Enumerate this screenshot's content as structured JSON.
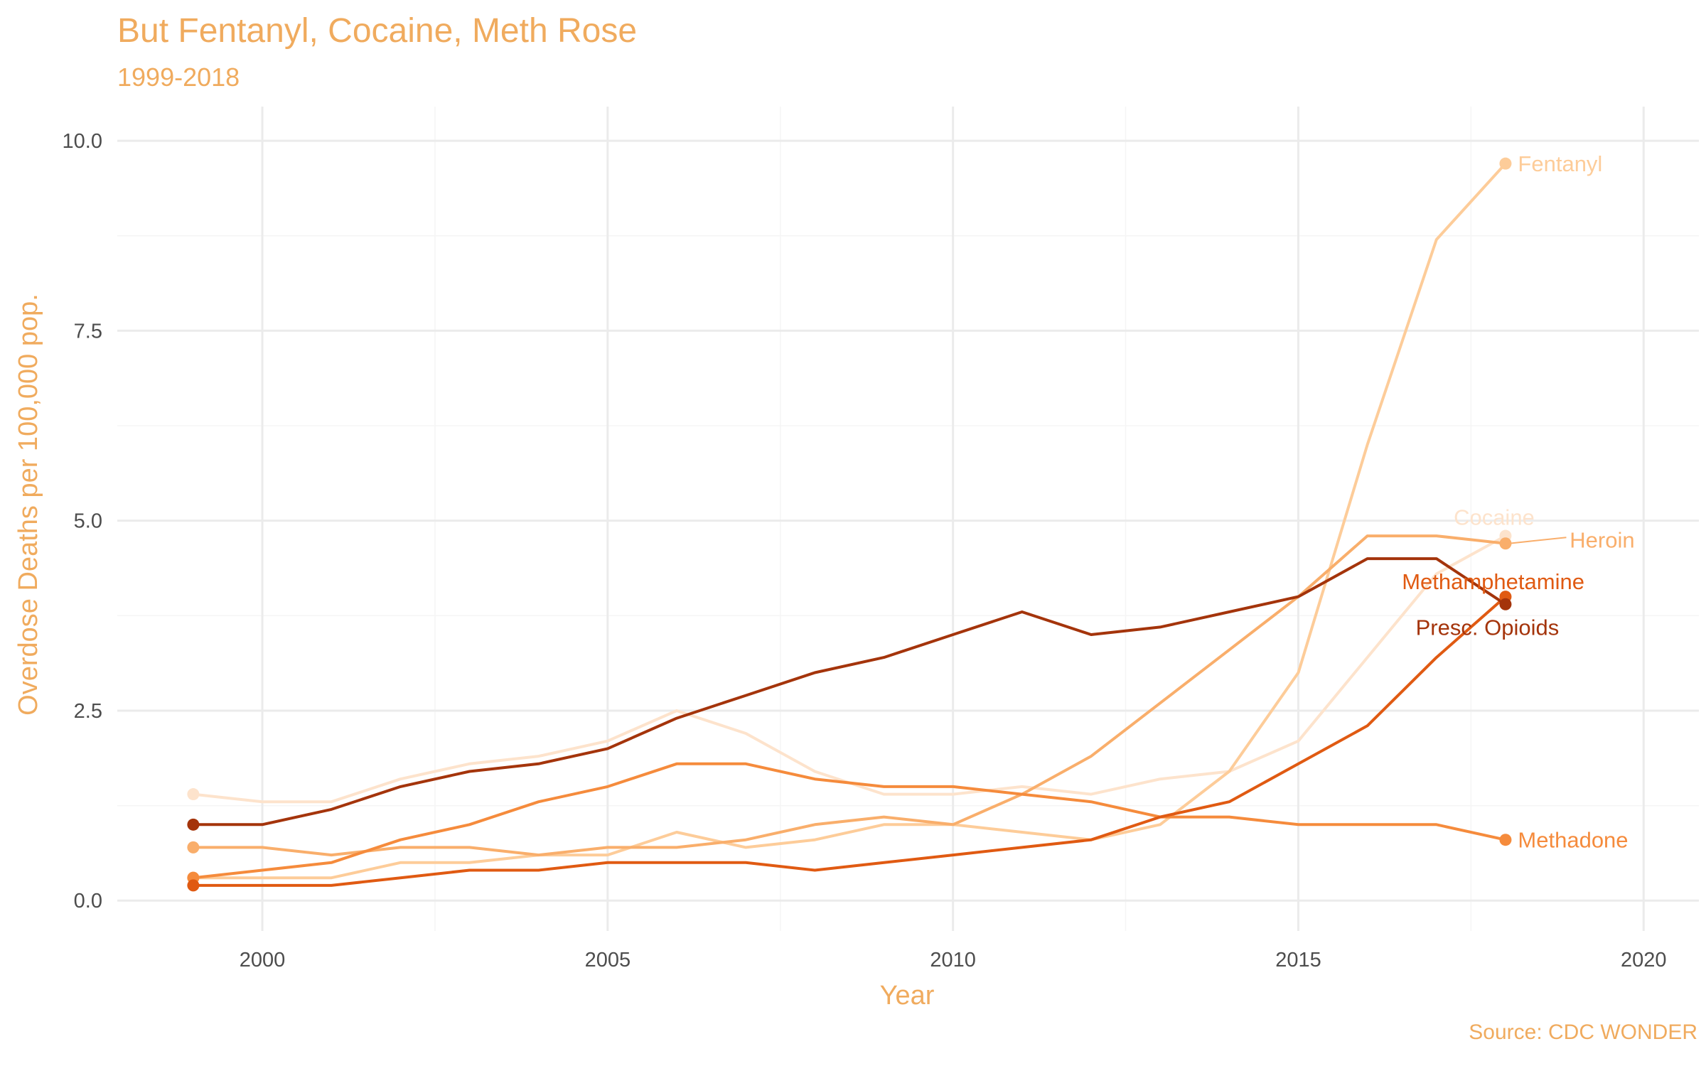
{
  "chart_data": {
    "type": "line",
    "title": "But Fentanyl, Cocaine, Meth Rose",
    "subtitle": "1999-2018",
    "caption": "Source: CDC WONDER",
    "xlabel": "Year",
    "ylabel": "Overdose Deaths per 100,000 pop.",
    "xlim": [
      1997.9,
      2020.8
    ],
    "ylim": [
      -0.4,
      10.45
    ],
    "xticks": [
      2000,
      2005,
      2010,
      2015,
      2020
    ],
    "xtick_labels": [
      "2000",
      "2005",
      "2010",
      "2015",
      "2020"
    ],
    "yticks": [
      0,
      2.5,
      5,
      7.5,
      10
    ],
    "ytick_labels": [
      "0.0",
      "2.5",
      "5.0",
      "7.5",
      "10.0"
    ],
    "grid": true,
    "legend": "direct labels at line ends",
    "x": [
      1999,
      2000,
      2001,
      2002,
      2003,
      2004,
      2005,
      2006,
      2007,
      2008,
      2009,
      2010,
      2011,
      2012,
      2013,
      2014,
      2015,
      2016,
      2017,
      2018
    ],
    "series": [
      {
        "name": "Cocaine",
        "color": "#FDE3CC",
        "label_year": 2017.25,
        "label_value": 5.05,
        "values": [
          1.4,
          1.3,
          1.3,
          1.6,
          1.8,
          1.9,
          2.1,
          2.5,
          2.2,
          1.7,
          1.4,
          1.4,
          1.5,
          1.4,
          1.6,
          1.7,
          2.1,
          3.2,
          4.3,
          4.8
        ]
      },
      {
        "name": "Fentanyl",
        "color": "#FDCC99",
        "label_year": 2018.18,
        "label_value": 9.7,
        "values": [
          0.3,
          0.3,
          0.3,
          0.5,
          0.5,
          0.6,
          0.6,
          0.9,
          0.7,
          0.8,
          1.0,
          1.0,
          0.9,
          0.8,
          1.0,
          1.7,
          3.0,
          6.0,
          8.7,
          9.7
        ]
      },
      {
        "name": "Heroin",
        "color": "#F9AE6B",
        "label_year": 2018.93,
        "label_value": 4.75,
        "leader": [
          2018.05,
          4.7,
          2018.88,
          4.78
        ],
        "values": [
          0.7,
          0.7,
          0.6,
          0.7,
          0.7,
          0.6,
          0.7,
          0.7,
          0.8,
          1.0,
          1.1,
          1.0,
          1.4,
          1.9,
          2.6,
          3.3,
          4.0,
          4.8,
          4.8,
          4.7
        ]
      },
      {
        "name": "Methadone",
        "color": "#F58B3C",
        "label_year": 2018.18,
        "label_value": 0.8,
        "values": [
          0.3,
          0.4,
          0.5,
          0.8,
          1.0,
          1.3,
          1.5,
          1.8,
          1.8,
          1.6,
          1.5,
          1.5,
          1.4,
          1.3,
          1.1,
          1.1,
          1.0,
          1.0,
          1.0,
          0.8
        ]
      },
      {
        "name": "Methamphetamine",
        "color": "#E05A12",
        "label_year": 2016.5,
        "label_value": 4.2,
        "values": [
          0.2,
          0.2,
          0.2,
          0.3,
          0.4,
          0.4,
          0.5,
          0.5,
          0.5,
          0.4,
          0.5,
          0.6,
          0.7,
          0.8,
          1.1,
          1.3,
          1.8,
          2.3,
          3.2,
          4.0
        ]
      },
      {
        "name": "Presc. Opioids",
        "color": "#A4340B",
        "label_year": 2016.7,
        "label_value": 3.6,
        "values": [
          1.0,
          1.0,
          1.2,
          1.5,
          1.7,
          1.8,
          2.0,
          2.4,
          2.7,
          3.0,
          3.2,
          3.5,
          3.8,
          3.5,
          3.6,
          3.8,
          4.0,
          4.5,
          4.5,
          3.9
        ]
      }
    ]
  }
}
